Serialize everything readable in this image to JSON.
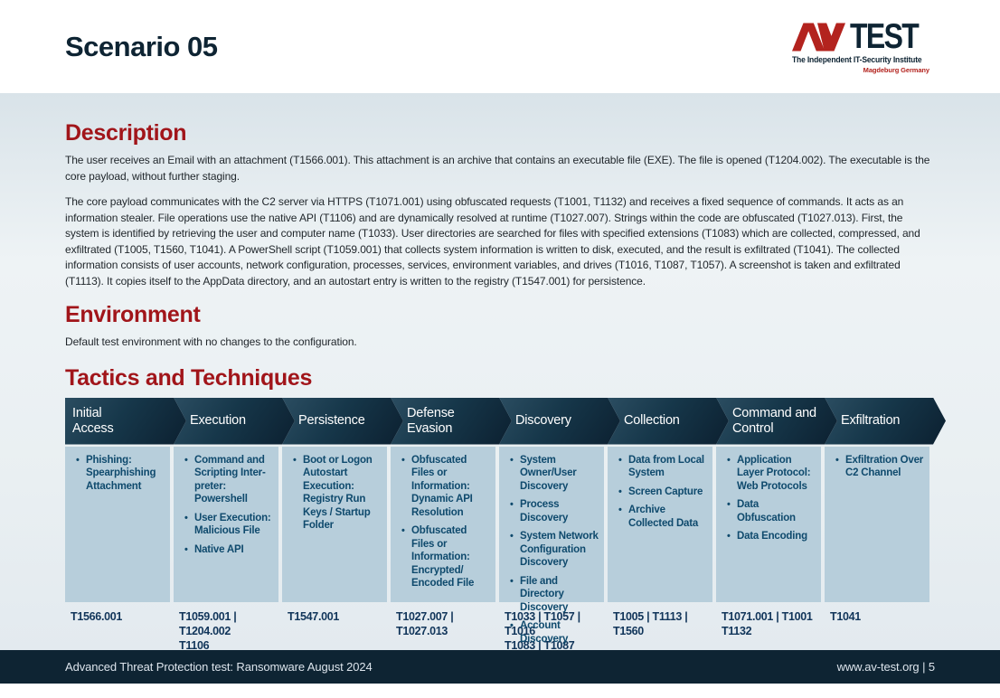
{
  "page": {
    "title": "Scenario 05",
    "logo": {
      "brand_monogram": "AV",
      "brand_text": "TEST",
      "tagline": "The Independent IT-Security Institute",
      "location": "Magdeburg Germany"
    },
    "footer": {
      "left": "Advanced Threat Protection test: Ransomware August 2024",
      "right": "www.av-test.org | 5"
    }
  },
  "sections": {
    "description": {
      "heading": "Description",
      "paragraphs": [
        "The user receives an Email with an attachment (T1566.001). This attachment is an archive that contains an executable file (EXE). The file is opened (T1204.002). The executable is the core payload, without further staging.",
        "The core payload communicates with the C2 server via HTTPS (T1071.001) using obfuscated requests (T1001, T1132) and receives a fixed sequence of commands. It acts as an information stealer. File operations use the native API (T1106) and are dynamically resolved at runtime (T1027.007). Strings within the code are obfuscated (T1027.013). First, the system is identified by retrieving the user and computer name (T1033). User directories are searched for files with specified extensions (T1083) which are collected, compressed, and exfiltrated (T1005, T1560, T1041). A PowerShell script (T1059.001) that collects system information is written to disk, executed, and the result is exfiltrated (T1041). The collected information consists of user accounts, network configuration, processes, services, environment variables, and drives (T1016, T1087, T1057). A screenshot is taken and exfiltrated (T1113). It copies itself to the AppData directory, and an autostart entry is written to the registry (T1547.001) for persistence."
      ]
    },
    "environment": {
      "heading": "Environment",
      "text": "Default test environment with no changes to the configuration."
    },
    "tactics": {
      "heading": "Tactics and Techniques"
    }
  },
  "table": {
    "columns": [
      {
        "header": "Initial\nAccess",
        "techniques": [
          "Phishing: Spearphishing Attachment"
        ],
        "tid_lines": [
          "T1566.001"
        ]
      },
      {
        "header": "Execution",
        "techniques": [
          "Command and Scripting Inter-preter: Powershell",
          "User Execution: Malicious File",
          "Native API"
        ],
        "tid_lines": [
          "T1059.001 | T1204.002",
          "T1106"
        ]
      },
      {
        "header": "Persistence",
        "techniques": [
          "Boot or Logon Autostart Execution: Registry Run Keys / Startup Folder"
        ],
        "tid_lines": [
          "T1547.001"
        ]
      },
      {
        "header": "Defense\nEvasion",
        "techniques": [
          "Obfuscated Files or Information: Dynamic API Resolution",
          "Obfuscated Files or Information: Encrypted/ Encoded File"
        ],
        "tid_lines": [
          "T1027.007 | T1027.013"
        ]
      },
      {
        "header": "Discovery",
        "techniques": [
          "System Owner/User Discovery",
          "Process Discovery",
          "System Network Configuration Discovery",
          "File and Directory Discovery",
          "Account Discovery"
        ],
        "tid_lines": [
          "T1033 | T1057 | T1016",
          "T1083 | T1087"
        ]
      },
      {
        "header": "Collection",
        "techniques": [
          "Data from Local System",
          "Screen Capture",
          "Archive Collected Data"
        ],
        "tid_lines": [
          "T1005 | T1113 | T1560"
        ]
      },
      {
        "header": "Command and\nControl",
        "techniques": [
          "Application Layer Protocol: Web Protocols",
          "Data Obfuscation",
          "Data Encoding"
        ],
        "tid_lines": [
          "T1071.001 | T1001",
          "T1132"
        ]
      },
      {
        "header": "Exfiltration",
        "techniques": [
          "Exfiltration Over C2 Channel"
        ],
        "tid_lines": [
          "T1041"
        ]
      }
    ]
  },
  "colors": {
    "accent_red": "#A1151A",
    "navy": "#0E2433",
    "cell_bg": "#B7CEDB",
    "cell_text": "#0F4A6D",
    "tid_text": "#11355A",
    "footer_bg": "#0E2433",
    "logo_red": "#B3231E"
  }
}
